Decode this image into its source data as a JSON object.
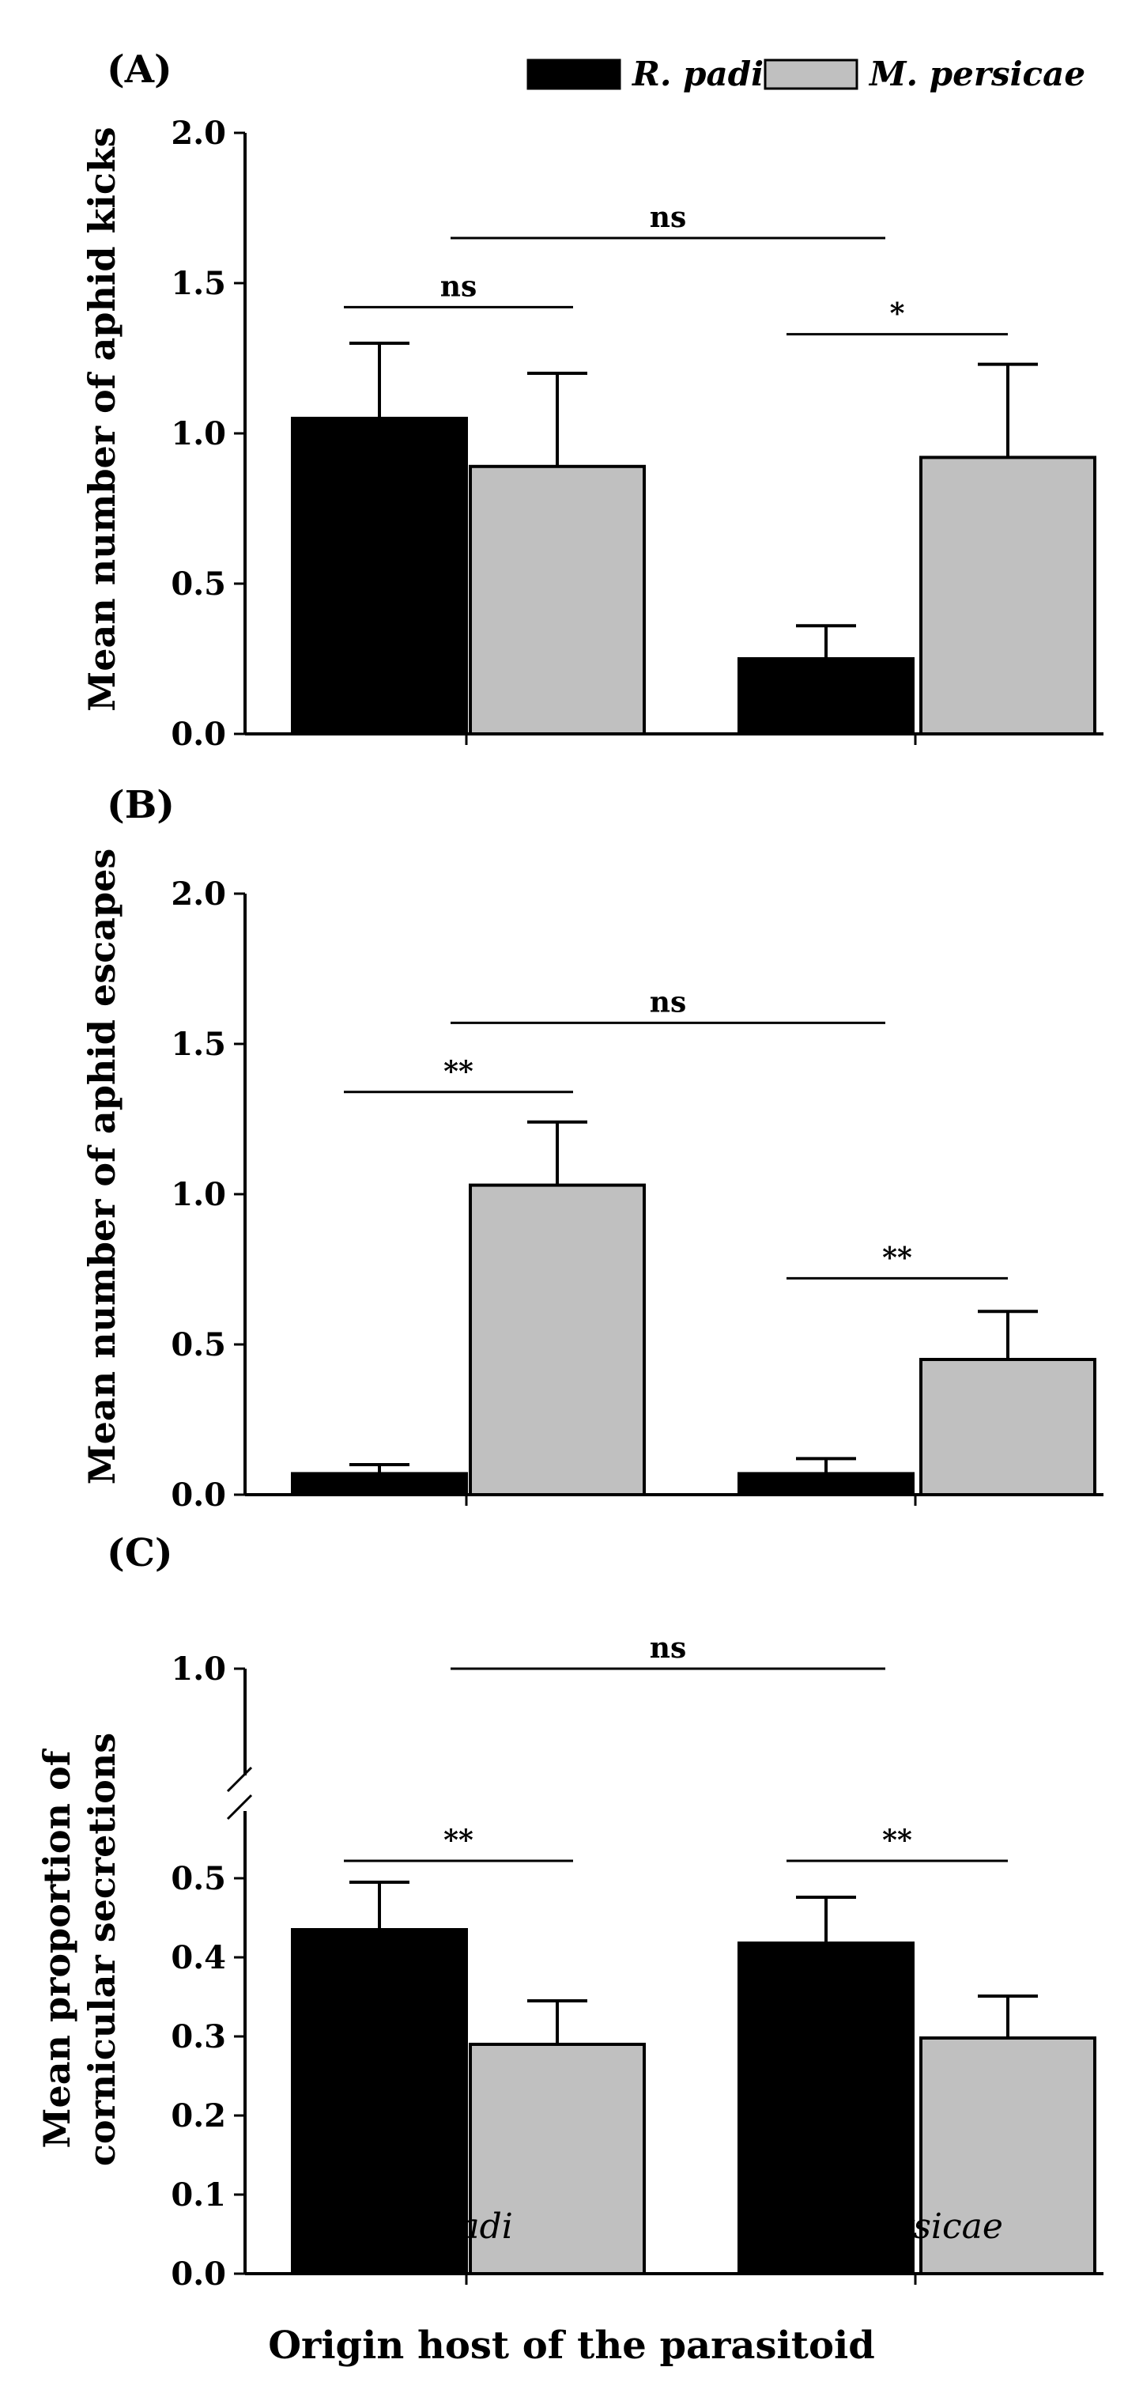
{
  "legend": {
    "series": [
      "R. padi",
      "M. persicae"
    ]
  },
  "colors": {
    "r_padi": "#000000",
    "m_persicae": "#c0c0c0",
    "axis": "#000000"
  },
  "xlabel": "Origin host of the parasitoid",
  "categories": [
    "R. padi",
    "M. persicae"
  ],
  "chart_data": [
    {
      "type": "bar",
      "panel": "(A)",
      "ylabel": "Mean number of aphid kicks",
      "ylim": [
        0,
        2.0
      ],
      "ticks": [
        "0.0",
        "0.5",
        "1.0",
        "1.5",
        "2.0"
      ],
      "tick_values": [
        0,
        0.5,
        1.0,
        1.5,
        2.0
      ],
      "categories": [
        "R. padi",
        "M. persicae"
      ],
      "series": [
        {
          "name": "R. padi",
          "values": [
            1.05,
            0.25
          ],
          "errors": [
            0.25,
            0.11
          ]
        },
        {
          "name": "M. persicae",
          "values": [
            0.89,
            0.92
          ],
          "errors": [
            0.31,
            0.31
          ]
        }
      ],
      "annotations": [
        {
          "label": "ns",
          "from": "R. padi / R. padi",
          "to": "M. persicae / R. padi",
          "y": 1.65
        },
        {
          "label": "ns",
          "from": "R. padi / R. padi",
          "to": "R. padi / M. persicae",
          "y": 1.42
        },
        {
          "label": "*",
          "from": "M. persicae / R. padi",
          "to": "M. persicae / M. persicae",
          "y": 1.33
        }
      ]
    },
    {
      "type": "bar",
      "panel": "(B)",
      "ylabel": "Mean number of aphid escapes",
      "ylim": [
        0,
        2.0
      ],
      "ticks": [
        "0.0",
        "0.5",
        "1.0",
        "1.5",
        "2.0"
      ],
      "tick_values": [
        0,
        0.5,
        1.0,
        1.5,
        2.0
      ],
      "categories": [
        "R. padi",
        "M. persicae"
      ],
      "series": [
        {
          "name": "R. padi",
          "values": [
            0.07,
            0.07
          ],
          "errors": [
            0.03,
            0.05
          ]
        },
        {
          "name": "M. persicae",
          "values": [
            1.03,
            0.45
          ],
          "errors": [
            0.21,
            0.16
          ]
        }
      ],
      "annotations": [
        {
          "label": "ns",
          "from": "R. padi / R. padi",
          "to": "M. persicae / R. padi",
          "y": 1.57
        },
        {
          "label": "**",
          "from": "R. padi / R. padi",
          "to": "R. padi / M. persicae",
          "y": 1.34
        },
        {
          "label": "**",
          "from": "M. persicae / R. padi",
          "to": "M. persicae / M. persicae",
          "y": 0.72
        }
      ]
    },
    {
      "type": "bar",
      "panel": "(C)",
      "ylabel": "Mean proportion of cornicular secretions",
      "ylabel_lines": [
        "Mean proportion of",
        "cornicular secretions"
      ],
      "ylim": [
        0,
        1.0
      ],
      "axis_break": [
        0.55,
        0.9
      ],
      "ticks": [
        "0.0",
        "0.1",
        "0.2",
        "0.3",
        "0.4",
        "0.5",
        "1.0"
      ],
      "tick_values": [
        0,
        0.1,
        0.2,
        0.3,
        0.4,
        0.5,
        1.0
      ],
      "categories": [
        "R. padi",
        "M. persicae"
      ],
      "series": [
        {
          "name": "R. padi",
          "values": [
            0.435,
            0.418
          ],
          "errors": [
            0.06,
            0.058
          ]
        },
        {
          "name": "M. persicae",
          "values": [
            0.29,
            0.298
          ],
          "errors": [
            0.055,
            0.053
          ]
        }
      ],
      "annotations": [
        {
          "label": "ns",
          "from": "R. padi / R. padi",
          "to": "M. persicae / R. padi",
          "y": 0.955
        },
        {
          "label": "**",
          "from": "R. padi / R. padi",
          "to": "R. padi / M. persicae",
          "y": 0.522
        },
        {
          "label": "**",
          "from": "M. persicae / R. padi",
          "to": "M. persicae / M. persicae",
          "y": 0.522
        }
      ]
    }
  ]
}
